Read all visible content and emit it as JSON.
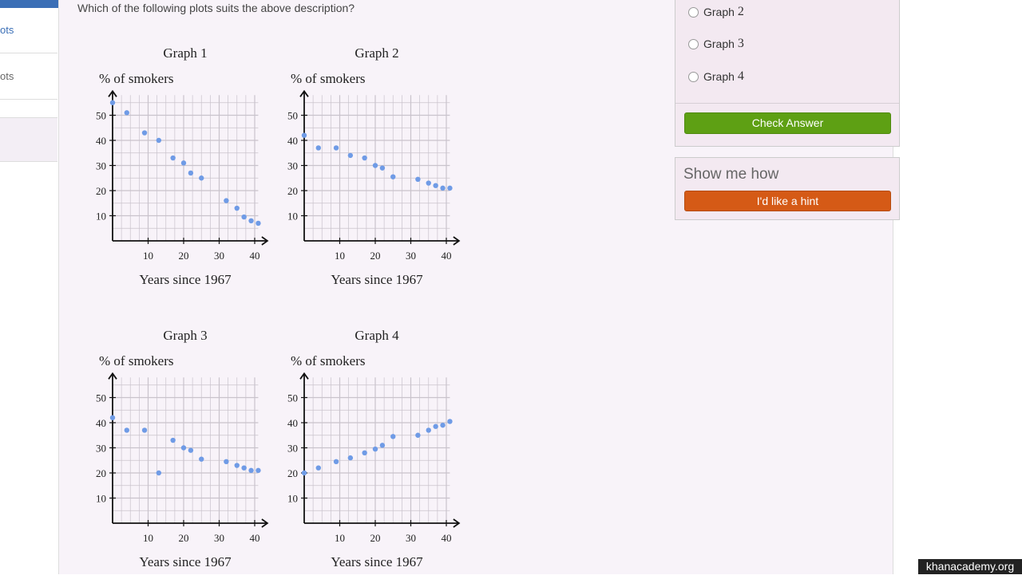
{
  "sidebar": {
    "item_a": "ots",
    "item_b": "ots"
  },
  "question": "Which of the following plots suits the above description?",
  "graphs": [
    {
      "title": "Graph 1",
      "ylabel": "% of smokers",
      "xlabel": "Years since 1967",
      "points": [
        [
          0,
          55
        ],
        [
          4,
          51
        ],
        [
          9,
          43
        ],
        [
          13,
          40
        ],
        [
          17,
          33
        ],
        [
          20,
          31
        ],
        [
          22,
          27
        ],
        [
          25,
          25
        ],
        [
          32,
          16
        ],
        [
          35,
          13
        ],
        [
          37,
          9.5
        ],
        [
          39,
          8
        ],
        [
          41,
          7
        ]
      ]
    },
    {
      "title": "Graph 2",
      "ylabel": "% of smokers",
      "xlabel": "Years since 1967",
      "points": [
        [
          0,
          42
        ],
        [
          4,
          37
        ],
        [
          9,
          37
        ],
        [
          13,
          34
        ],
        [
          17,
          33
        ],
        [
          20,
          30
        ],
        [
          22,
          29
        ],
        [
          25,
          25.5
        ],
        [
          32,
          24.5
        ],
        [
          35,
          23
        ],
        [
          37,
          22
        ],
        [
          39,
          21
        ],
        [
          41,
          21
        ]
      ]
    },
    {
      "title": "Graph 3",
      "ylabel": "% of smokers",
      "xlabel": "Years since 1967",
      "points": [
        [
          0,
          42
        ],
        [
          4,
          37
        ],
        [
          9,
          37
        ],
        [
          13,
          20
        ],
        [
          17,
          33
        ],
        [
          20,
          30
        ],
        [
          22,
          29
        ],
        [
          25,
          25.5
        ],
        [
          32,
          24.5
        ],
        [
          35,
          23
        ],
        [
          37,
          22
        ],
        [
          39,
          21
        ],
        [
          41,
          21
        ]
      ]
    },
    {
      "title": "Graph 4",
      "ylabel": "% of smokers",
      "xlabel": "Years since 1967",
      "points": [
        [
          0,
          20
        ],
        [
          4,
          22
        ],
        [
          9,
          24.5
        ],
        [
          13,
          26
        ],
        [
          17,
          28
        ],
        [
          20,
          29.5
        ],
        [
          22,
          31
        ],
        [
          25,
          34.5
        ],
        [
          32,
          35
        ],
        [
          35,
          37
        ],
        [
          37,
          38.5
        ],
        [
          39,
          39
        ],
        [
          41,
          40.5
        ]
      ]
    }
  ],
  "chart_data": [
    {
      "type": "scatter",
      "title": "Graph 1",
      "xlabel": "Years since 1967",
      "ylabel": "% of smokers",
      "xlim": [
        0,
        42
      ],
      "ylim": [
        0,
        58
      ],
      "x": [
        0,
        4,
        9,
        13,
        17,
        20,
        22,
        25,
        32,
        35,
        37,
        39,
        41
      ],
      "y": [
        55,
        51,
        43,
        40,
        33,
        31,
        27,
        25,
        16,
        13,
        9.5,
        8,
        7
      ]
    },
    {
      "type": "scatter",
      "title": "Graph 2",
      "xlabel": "Years since 1967",
      "ylabel": "% of smokers",
      "xlim": [
        0,
        42
      ],
      "ylim": [
        0,
        58
      ],
      "x": [
        0,
        4,
        9,
        13,
        17,
        20,
        22,
        25,
        32,
        35,
        37,
        39,
        41
      ],
      "y": [
        42,
        37,
        37,
        34,
        33,
        30,
        29,
        25.5,
        24.5,
        23,
        22,
        21,
        21
      ]
    },
    {
      "type": "scatter",
      "title": "Graph 3",
      "xlabel": "Years since 1967",
      "ylabel": "% of smokers",
      "xlim": [
        0,
        42
      ],
      "ylim": [
        0,
        58
      ],
      "x": [
        0,
        4,
        9,
        13,
        17,
        20,
        22,
        25,
        32,
        35,
        37,
        39,
        41
      ],
      "y": [
        42,
        37,
        37,
        20,
        33,
        30,
        29,
        25.5,
        24.5,
        23,
        22,
        21,
        21
      ]
    },
    {
      "type": "scatter",
      "title": "Graph 4",
      "xlabel": "Years since 1967",
      "ylabel": "% of smokers",
      "xlim": [
        0,
        42
      ],
      "ylim": [
        0,
        58
      ],
      "x": [
        0,
        4,
        9,
        13,
        17,
        20,
        22,
        25,
        32,
        35,
        37,
        39,
        41
      ],
      "y": [
        20,
        22,
        24.5,
        26,
        28,
        29.5,
        31,
        34.5,
        35,
        37,
        38.5,
        39,
        40.5
      ]
    }
  ],
  "axes": {
    "x_ticks": [
      10,
      20,
      30,
      40
    ],
    "y_ticks": [
      10,
      20,
      30,
      40,
      50
    ]
  },
  "options": [
    {
      "label": "Graph",
      "num": "2"
    },
    {
      "label": "Graph",
      "num": "3"
    },
    {
      "label": "Graph",
      "num": "4"
    }
  ],
  "check_button": "Check Answer",
  "hint": {
    "title": "Show me how",
    "button": "I'd like a hint"
  },
  "watermark": "khanacademy.org",
  "colors": {
    "point": "#6f9be6",
    "grid": "#c9c3cc",
    "check": "#5ea014",
    "hint": "#d55a16"
  }
}
